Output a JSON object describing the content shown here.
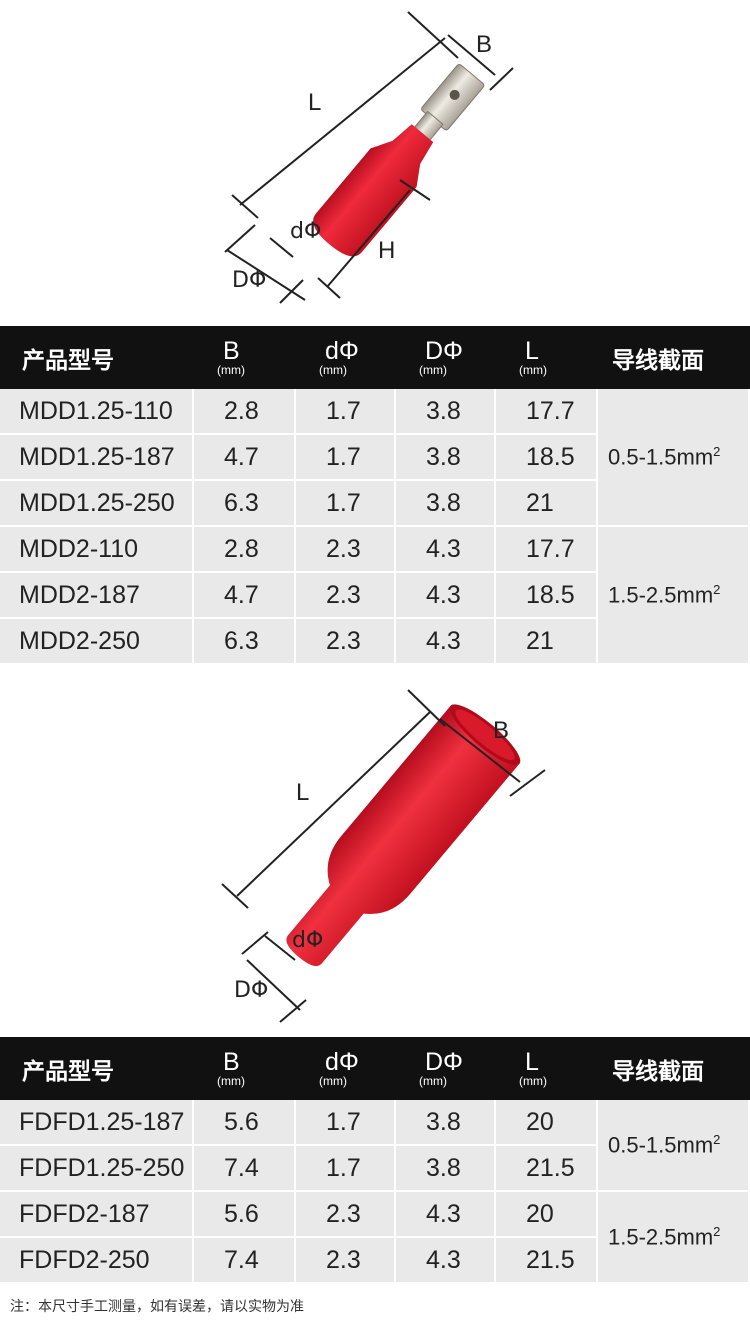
{
  "figure_top": {
    "labels": {
      "B": "B",
      "L": "L",
      "d": "dΦ",
      "D": "DΦ",
      "H": "H"
    },
    "colors": {
      "insulation": "#e2152b",
      "metal": "#cfc8bd",
      "line": "#222222"
    }
  },
  "table_top": {
    "headers": {
      "name": "产品型号",
      "b": "B",
      "b_unit": "(mm)",
      "d": "dΦ",
      "d_unit": "(mm)",
      "D": "DΦ",
      "D_unit": "(mm)",
      "l": "L",
      "l_unit": "(mm)",
      "area": "导线截面"
    },
    "rows": [
      {
        "name": "MDD1.25-110",
        "b": "2.8",
        "d": "1.7",
        "D": "3.8",
        "l": "17.7"
      },
      {
        "name": "MDD1.25-187",
        "b": "4.7",
        "d": "1.7",
        "D": "3.8",
        "l": "18.5"
      },
      {
        "name": "MDD1.25-250",
        "b": "6.3",
        "d": "1.7",
        "D": "3.8",
        "l": "21"
      },
      {
        "name": "MDD2-110",
        "b": "2.8",
        "d": "2.3",
        "D": "4.3",
        "l": "17.7"
      },
      {
        "name": "MDD2-187",
        "b": "4.7",
        "d": "2.3",
        "D": "4.3",
        "l": "18.5"
      },
      {
        "name": "MDD2-250",
        "b": "6.3",
        "d": "2.3",
        "D": "4.3",
        "l": "21"
      }
    ],
    "areas": [
      {
        "text": "0.5-1.5mm",
        "sup": "2"
      },
      {
        "text": "1.5-2.5mm",
        "sup": "2"
      }
    ]
  },
  "figure_bottom": {
    "labels": {
      "B": "B",
      "L": "L",
      "d": "dΦ",
      "D": "DΦ"
    },
    "colors": {
      "insulation": "#e2152b",
      "line": "#222222"
    }
  },
  "table_bottom": {
    "headers": {
      "name": "产品型号",
      "b": "B",
      "b_unit": "(mm)",
      "d": "dΦ",
      "d_unit": "(mm)",
      "D": "DΦ",
      "D_unit": "(mm)",
      "l": "L",
      "l_unit": "(mm)",
      "area": "导线截面"
    },
    "rows": [
      {
        "name": "FDFD1.25-187",
        "b": "5.6",
        "d": "1.7",
        "D": "3.8",
        "l": "20"
      },
      {
        "name": "FDFD1.25-250",
        "b": "7.4",
        "d": "1.7",
        "D": "3.8",
        "l": "21.5"
      },
      {
        "name": "FDFD2-187",
        "b": "5.6",
        "d": "2.3",
        "D": "4.3",
        "l": "20"
      },
      {
        "name": "FDFD2-250",
        "b": "7.4",
        "d": "2.3",
        "D": "4.3",
        "l": "21.5"
      }
    ],
    "areas": [
      {
        "text": "0.5-1.5mm",
        "sup": "2"
      },
      {
        "text": "1.5-2.5mm",
        "sup": "2"
      }
    ]
  },
  "footnote": "注：本尺寸手工测量，如有误差，请以实物为准"
}
